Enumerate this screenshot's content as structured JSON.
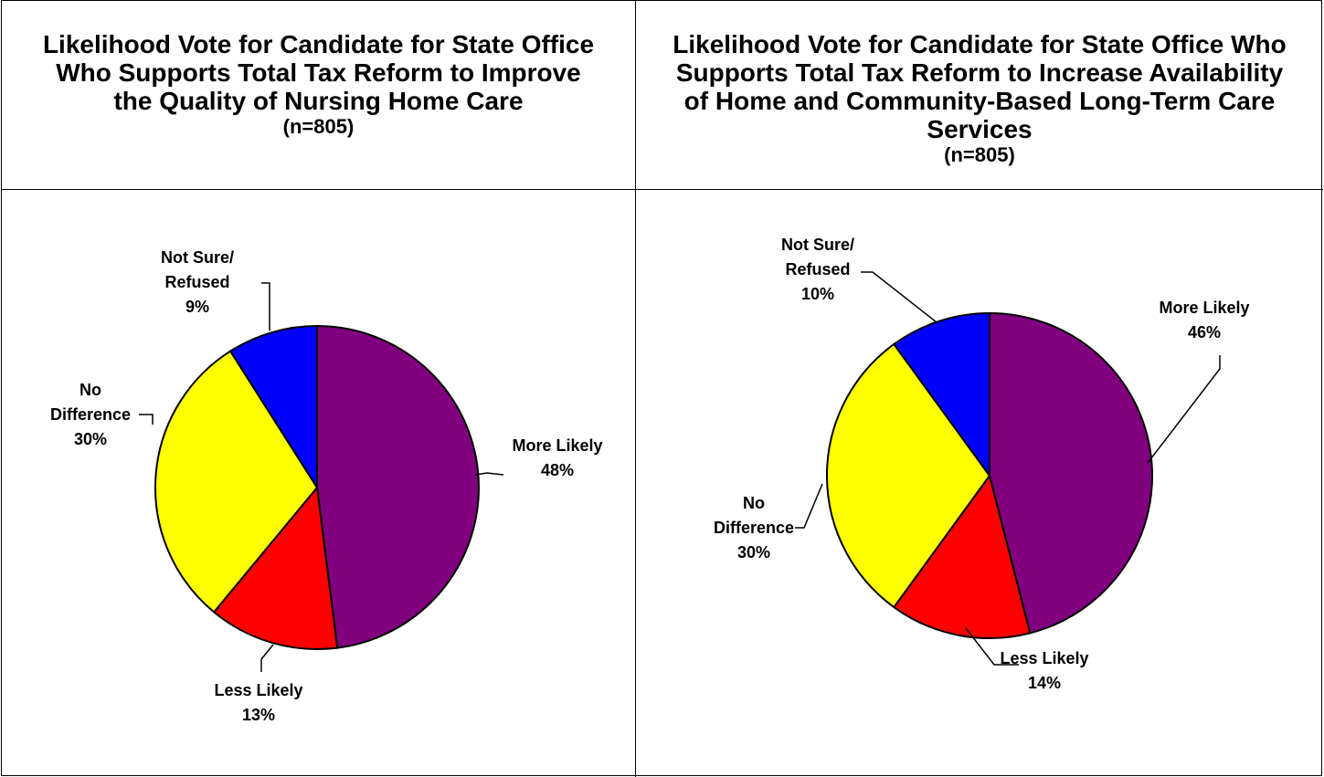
{
  "charts": [
    {
      "title": "Likelihood Vote for Candidate for State Office Who Supports Total Tax Reform to Improve the Quality of Nursing Home Care",
      "subtitle": "(n=805)"
    },
    {
      "title": "Likelihood Vote for Candidate for State Office Who Supports Total Tax Reform to Increase Availability of Home and Community-Based Long-Term Care Services",
      "subtitle": "(n=805)"
    }
  ],
  "chart_data": [
    {
      "type": "pie",
      "title": "Likelihood Vote for Candidate for State Office Who Supports Total Tax Reform to Improve the Quality of Nursing Home Care",
      "subtitle": "(n=805)",
      "slices": [
        {
          "label": [
            "More Likely"
          ],
          "pct": "48%",
          "value": 48,
          "color": "#800080"
        },
        {
          "label": [
            "Less Likely"
          ],
          "pct": "13%",
          "value": 13,
          "color": "#ff0000"
        },
        {
          "label": [
            "No",
            "Difference"
          ],
          "pct": "30%",
          "value": 30,
          "color": "#ffff00"
        },
        {
          "label": [
            "Not Sure/",
            "Refused"
          ],
          "pct": "9%",
          "value": 9,
          "color": "#0000ff"
        }
      ]
    },
    {
      "type": "pie",
      "title": "Likelihood Vote for Candidate for State Office Who Supports Total Tax Reform to Increase Availability of Home and Community-Based Long-Term Care Services",
      "subtitle": "(n=805)",
      "slices": [
        {
          "label": [
            "More Likely"
          ],
          "pct": "46%",
          "value": 46,
          "color": "#800080"
        },
        {
          "label": [
            "Less Likely"
          ],
          "pct": "14%",
          "value": 14,
          "color": "#ff0000"
        },
        {
          "label": [
            "No",
            "Difference"
          ],
          "pct": "30%",
          "value": 30,
          "color": "#ffff00"
        },
        {
          "label": [
            "Not Sure/",
            "Refused"
          ],
          "pct": "10%",
          "value": 10,
          "color": "#0000ff"
        }
      ]
    }
  ]
}
